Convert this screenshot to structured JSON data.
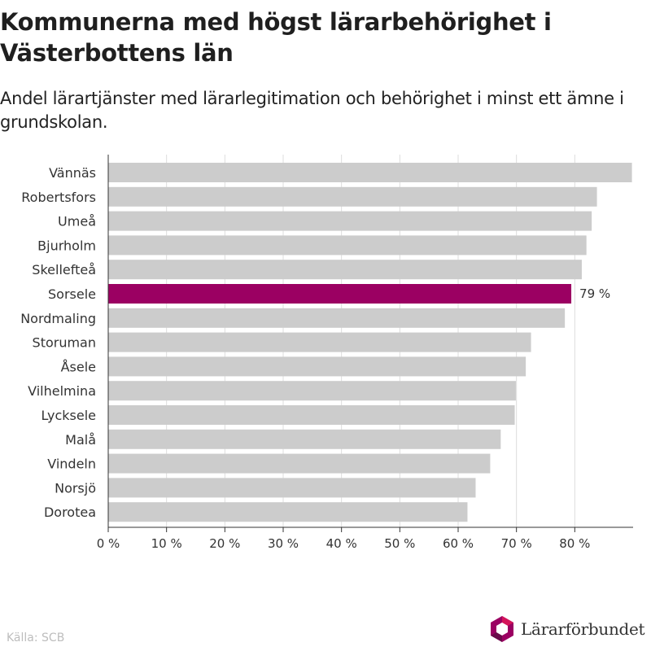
{
  "title": "Kommunerna med högst lärarbehörighet i Västerbottens län",
  "subtitle": "Andel lärartjänster med lärarlegitimation och behörighet i minst ett ämne i grundskolan.",
  "source": "Källa: SCB",
  "logo": {
    "text": "Lärarförbundet",
    "icon": "lararforbundet-logo-icon"
  },
  "colors": {
    "bar": "#cccccc",
    "highlight": "#9b0062",
    "grid": "#dddddd",
    "axis": "#333333"
  },
  "chart_data": {
    "type": "bar",
    "orientation": "horizontal",
    "categories": [
      "Vännäs",
      "Robertsfors",
      "Umeå",
      "Bjurholm",
      "Skellefteå",
      "Sorsele",
      "Nordmaling",
      "Storuman",
      "Åsele",
      "Vilhelmina",
      "Lycksele",
      "Malå",
      "Vindeln",
      "Norsjö",
      "Dorotea"
    ],
    "values": [
      89.8,
      83.8,
      82.9,
      82.0,
      81.2,
      79.4,
      78.3,
      72.5,
      71.6,
      69.9,
      69.7,
      67.3,
      65.5,
      63.0,
      61.6
    ],
    "highlight": "Sorsele",
    "highlight_label": "79 %",
    "xlim": [
      0,
      90
    ],
    "xticks": [
      "0 %",
      "10 %",
      "20 %",
      "30 %",
      "40 %",
      "50 %",
      "60 %",
      "70 %",
      "80 %"
    ],
    "xtick_values": [
      0,
      10,
      20,
      30,
      40,
      50,
      60,
      70,
      80
    ],
    "grid": true,
    "legend": "none"
  }
}
